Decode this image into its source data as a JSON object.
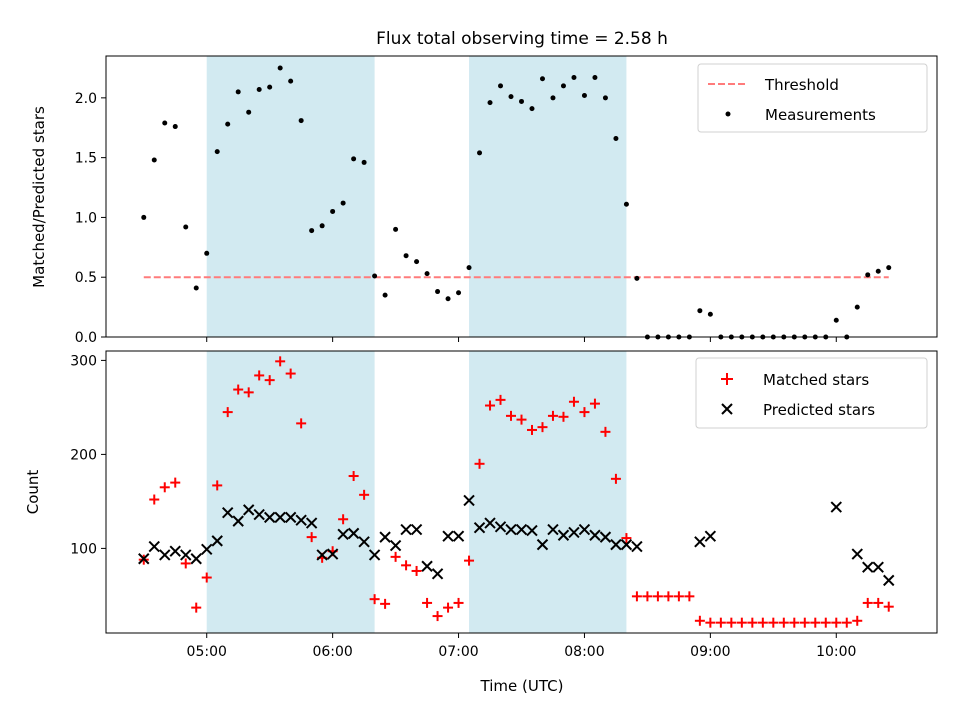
{
  "figure": {
    "title": "Flux total observing time = 2.58 h",
    "xlabel": "Time (UTC)",
    "xticks": [
      "05:00",
      "06:00",
      "07:00",
      "08:00",
      "09:00",
      "10:00"
    ],
    "xtick_hours": [
      5,
      6,
      7,
      8,
      9,
      10
    ]
  },
  "colors": {
    "band": "#add8e6",
    "threshold": "#ff7b7b",
    "measurements": "#000000",
    "matched": "#ff0000",
    "predicted": "#000000"
  },
  "chart_data": [
    {
      "type": "scatter",
      "ylabel": "Matched/Predicted stars",
      "xlim": [
        "04:12",
        "10:48"
      ],
      "ylim": [
        0,
        2.35
      ],
      "yticks": [
        "0.0",
        "0.5",
        "1.0",
        "1.5",
        "2.0"
      ],
      "ytick_values": [
        0,
        0.5,
        1.0,
        1.5,
        2.0
      ],
      "legend": {
        "placement": "top-right",
        "entries": [
          "Threshold",
          "Measurements"
        ]
      },
      "shaded_intervals": [
        [
          "05:00",
          "06:20"
        ],
        [
          "07:05",
          "08:20"
        ]
      ],
      "threshold": {
        "name": "Threshold",
        "value": 0.5,
        "x_range": [
          "04:30",
          "10:25"
        ]
      },
      "series": [
        {
          "name": "Measurements",
          "x": [
            "04:30",
            "04:35",
            "04:40",
            "04:45",
            "04:50",
            "04:55",
            "05:00",
            "05:05",
            "05:10",
            "05:15",
            "05:20",
            "05:25",
            "05:30",
            "05:35",
            "05:40",
            "05:45",
            "05:50",
            "05:55",
            "06:00",
            "06:05",
            "06:10",
            "06:15",
            "06:20",
            "06:25",
            "06:30",
            "06:35",
            "06:40",
            "06:45",
            "06:50",
            "06:55",
            "07:00",
            "07:05",
            "07:10",
            "07:15",
            "07:20",
            "07:25",
            "07:30",
            "07:35",
            "07:40",
            "07:45",
            "07:50",
            "07:55",
            "08:00",
            "08:05",
            "08:10",
            "08:15",
            "08:20",
            "08:25",
            "08:30",
            "08:35",
            "08:40",
            "08:45",
            "08:50",
            "08:55",
            "09:00",
            "09:05",
            "09:10",
            "09:15",
            "09:20",
            "09:25",
            "09:30",
            "09:35",
            "09:40",
            "09:45",
            "09:50",
            "09:55",
            "10:00",
            "10:05",
            "10:10",
            "10:15",
            "10:20",
            "10:25"
          ],
          "y": [
            1.0,
            1.48,
            1.79,
            1.76,
            0.92,
            0.41,
            0.7,
            1.55,
            1.78,
            2.05,
            1.88,
            2.07,
            2.09,
            2.25,
            2.14,
            1.81,
            0.89,
            0.93,
            1.05,
            1.12,
            1.49,
            1.46,
            0.51,
            0.35,
            0.9,
            0.68,
            0.63,
            0.53,
            0.38,
            0.32,
            0.37,
            0.58,
            1.54,
            1.96,
            2.1,
            2.01,
            1.97,
            1.91,
            2.16,
            2.0,
            2.1,
            2.17,
            2.02,
            2.17,
            2.0,
            1.66,
            1.11,
            0.49,
            0.0,
            0.0,
            0.0,
            0.0,
            0.0,
            0.22,
            0.19,
            0.0,
            0.0,
            0.0,
            0.0,
            0.0,
            0.0,
            0.0,
            0.0,
            0.0,
            0.0,
            0.0,
            0.14,
            0.0,
            0.25,
            0.52,
            0.55,
            0.58
          ]
        }
      ]
    },
    {
      "type": "scatter",
      "ylabel": "Count",
      "xlim": [
        "04:12",
        "10:48"
      ],
      "ylim": [
        10,
        310
      ],
      "yticks": [
        "100",
        "200",
        "300"
      ],
      "ytick_values": [
        100,
        200,
        300
      ],
      "legend": {
        "placement": "top-right",
        "entries": [
          "Matched stars",
          "Predicted stars"
        ]
      },
      "shaded_intervals": [
        [
          "05:00",
          "06:20"
        ],
        [
          "07:05",
          "08:20"
        ]
      ],
      "series": [
        {
          "name": "Matched stars",
          "marker": "plus",
          "x": [
            "04:30",
            "04:35",
            "04:40",
            "04:45",
            "04:50",
            "04:55",
            "05:00",
            "05:05",
            "05:10",
            "05:15",
            "05:20",
            "05:25",
            "05:30",
            "05:35",
            "05:40",
            "05:45",
            "05:50",
            "05:55",
            "06:00",
            "06:05",
            "06:10",
            "06:15",
            "06:20",
            "06:25",
            "06:30",
            "06:35",
            "06:40",
            "06:45",
            "06:50",
            "06:55",
            "07:00",
            "07:05",
            "07:10",
            "07:15",
            "07:20",
            "07:25",
            "07:30",
            "07:35",
            "07:40",
            "07:45",
            "07:50",
            "07:55",
            "08:00",
            "08:05",
            "08:10",
            "08:15",
            "08:20",
            "08:25",
            "08:30",
            "08:35",
            "08:40",
            "08:45",
            "08:50",
            "08:55",
            "09:00",
            "09:05",
            "09:10",
            "09:15",
            "09:20",
            "09:25",
            "09:30",
            "09:35",
            "09:40",
            "09:45",
            "09:50",
            "09:55",
            "10:00",
            "10:05",
            "10:10",
            "10:15",
            "10:20",
            "10:25"
          ],
          "y": [
            88,
            152,
            165,
            170,
            84,
            37,
            69,
            167,
            245,
            269,
            266,
            284,
            279,
            299,
            286,
            233,
            112,
            90,
            97,
            131,
            177,
            157,
            46,
            41,
            91,
            82,
            76,
            42,
            28,
            37,
            42,
            87,
            190,
            252,
            258,
            241,
            237,
            226,
            229,
            241,
            240,
            256,
            245,
            254,
            224,
            174,
            111,
            49,
            49,
            49,
            49,
            49,
            49,
            23,
            21,
            21,
            21,
            21,
            21,
            21,
            21,
            21,
            21,
            21,
            21,
            21,
            21,
            21,
            23,
            42,
            42,
            38
          ]
        },
        {
          "name": "Predicted stars",
          "marker": "x",
          "x": [
            "04:30",
            "04:35",
            "04:40",
            "04:45",
            "04:50",
            "04:55",
            "05:00",
            "05:05",
            "05:10",
            "05:15",
            "05:20",
            "05:25",
            "05:30",
            "05:35",
            "05:40",
            "05:45",
            "05:50",
            "05:55",
            "06:00",
            "06:05",
            "06:10",
            "06:15",
            "06:20",
            "06:25",
            "06:30",
            "06:35",
            "06:40",
            "06:45",
            "06:50",
            "06:55",
            "07:00",
            "07:05",
            "07:10",
            "07:15",
            "07:20",
            "07:25",
            "07:30",
            "07:35",
            "07:40",
            "07:45",
            "07:50",
            "07:55",
            "08:00",
            "08:05",
            "08:10",
            "08:15",
            "08:20",
            "08:25",
            "08:55",
            "09:00",
            "10:00",
            "10:10",
            "10:15",
            "10:20",
            "10:25"
          ],
          "y": [
            89,
            102,
            93,
            97,
            93,
            89,
            99,
            108,
            138,
            129,
            141,
            136,
            133,
            133,
            133,
            130,
            127,
            93,
            94,
            115,
            116,
            107,
            93,
            112,
            103,
            120,
            120,
            81,
            73,
            113,
            113,
            151,
            122,
            127,
            123,
            120,
            120,
            119,
            104,
            120,
            114,
            117,
            120,
            114,
            112,
            104,
            104,
            102,
            107,
            113,
            144,
            94,
            80,
            80,
            66
          ]
        }
      ]
    }
  ]
}
